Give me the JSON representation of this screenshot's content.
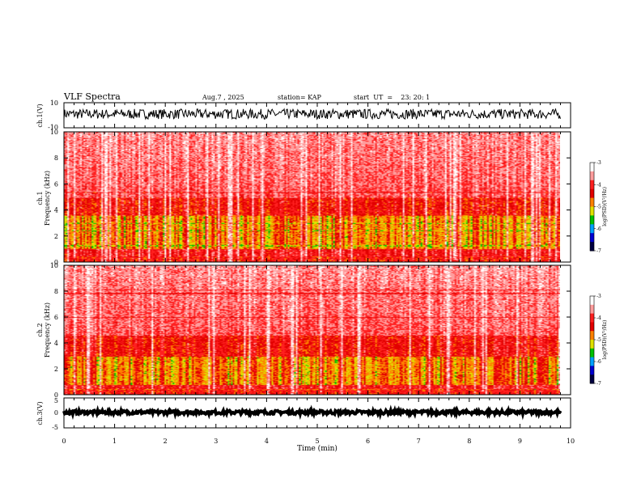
{
  "header": {
    "title": "VLF Spectra",
    "date": "Aug.7  , 2025",
    "station": "station= KAP",
    "start_ut": "start  UT  =    23: 20: 1"
  },
  "colors": {
    "axis": "#000000",
    "background": "#ffffff",
    "colormap": [
      "#ffffff",
      "#ff9c9c",
      "#ff2020",
      "#e20000",
      "#ff8000",
      "#e0e000",
      "#00c000",
      "#00a0ff",
      "#0000d0",
      "#000040"
    ]
  },
  "chart_data": [
    {
      "id": "ch1-waveform",
      "type": "line",
      "ylabel": "ch.1(V)",
      "ylim": [
        -10,
        10
      ],
      "yticks": [
        "10",
        "-10"
      ],
      "xlim": [
        0,
        10
      ],
      "data_extent": [
        0,
        9.8
      ],
      "series": [
        {
          "name": "ch.1",
          "mean": 1.0,
          "amplitude": 4.0
        }
      ]
    },
    {
      "id": "ch1-spectrogram",
      "type": "heatmap",
      "ylabel": "ch.1\nFrequency  (kHz)",
      "ylim": [
        0,
        10
      ],
      "yticks": [
        "0",
        "2",
        "4",
        "6",
        "8",
        "10"
      ],
      "xlim": [
        0,
        10
      ],
      "data_extent": [
        0,
        9.8
      ],
      "bands": [
        {
          "from": 0.0,
          "to": 0.5,
          "level": "high"
        },
        {
          "from": 1.0,
          "to": 3.6,
          "level": "peak"
        },
        {
          "from": 3.6,
          "to": 5.0,
          "level": "elevated"
        },
        {
          "from": 5.0,
          "to": 10.0,
          "level": "background"
        }
      ],
      "colorbar": {
        "label": "log(PSD)(V²/Hz)",
        "ticks": [
          "-3",
          "-4",
          "-5",
          "-6",
          "-7"
        ],
        "range": [
          -7,
          -3
        ]
      }
    },
    {
      "id": "ch2-spectrogram",
      "type": "heatmap",
      "ylabel": "ch.2\nFrequency  (kHz)",
      "ylim": [
        0,
        10
      ],
      "yticks": [
        "0",
        "2",
        "4",
        "6",
        "8",
        "10"
      ],
      "xlim": [
        0,
        10
      ],
      "data_extent": [
        0,
        9.8
      ],
      "bands": [
        {
          "from": 0.0,
          "to": 0.5,
          "level": "high"
        },
        {
          "from": 0.8,
          "to": 3.0,
          "level": "peak"
        },
        {
          "from": 3.0,
          "to": 4.6,
          "level": "elevated"
        },
        {
          "from": 4.6,
          "to": 10.0,
          "level": "background"
        }
      ],
      "colorbar": {
        "label": "log(PSD)(V²/Hz)",
        "ticks": [
          "-3",
          "-4",
          "-5",
          "-6",
          "-7"
        ],
        "range": [
          -7,
          -3
        ]
      }
    },
    {
      "id": "ch3-waveform",
      "type": "line",
      "ylabel": "ch.3(V)",
      "ylim": [
        -5,
        5
      ],
      "yticks": [
        "5",
        "0",
        "-5"
      ],
      "xlim": [
        0,
        10
      ],
      "data_extent": [
        0,
        9.8
      ],
      "series": [
        {
          "name": "ch.3",
          "mean": 0.2,
          "amplitude": 0.6
        }
      ]
    }
  ],
  "xaxis": {
    "label": "Time  (min)",
    "ticks": [
      "0",
      "1",
      "2",
      "3",
      "4",
      "5",
      "6",
      "7",
      "8",
      "9",
      "10"
    ]
  }
}
